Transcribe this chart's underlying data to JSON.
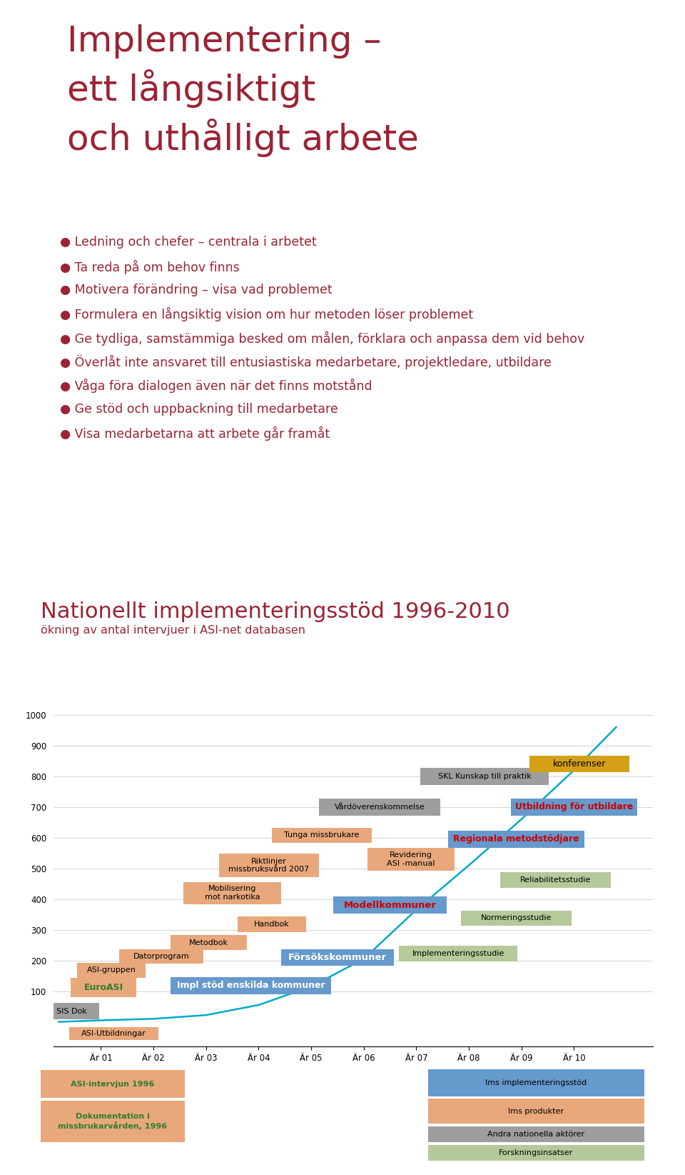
{
  "slide1_title": "Implementering –\nett långsiktigt\noch uthålligt arbete",
  "slide1_bullets": [
    "Ledning och chefer – centrala i arbetet",
    "Ta reda på om behov finns",
    "Motivera förändring – visa vad problemet",
    "Formulera en långsiktig vision om hur metoden löser problemet",
    "Ge tydliga, samstämmiga besked om målen, förklara och anpassa dem vid behov",
    "Överlåt inte ansvaret till entusiastiska medarbetare, projektledare, utbildare",
    "Våga föra dialogen även när det finns motstånd",
    "Ge stöd och uppbackning till medarbetare",
    "Visa medarbetarna att arbete går framåt"
  ],
  "slide2_title": "Nationellt implementeringsstöd 1996-2010",
  "slide2_subtitle": "ökning av antal intervjuer i ASI-net databasen",
  "title_color": "#9B2335",
  "bullet_color": "#9B2335",
  "bg_color": "#FFFFFF",
  "c_blue": "#6699CC",
  "c_orange": "#E8A87C",
  "c_gray": "#9E9E9E",
  "c_green": "#B5C99A",
  "c_gold": "#D4A017",
  "c_cyan": "#00AACC",
  "c_green_text": "#2E7D32",
  "x_labels": [
    "Är 01",
    "Är 02",
    "Är 03",
    "Är 04",
    "Är 05",
    "Är 06",
    "Är 07",
    "Är 08",
    "Är 09",
    "Är 10"
  ],
  "yticks": [
    100,
    200,
    300,
    400,
    500,
    600,
    700,
    800,
    900,
    1000
  ],
  "line_x": [
    -0.8,
    0,
    1,
    2,
    3,
    4,
    5,
    6,
    7,
    8,
    9,
    9.8
  ],
  "line_y": [
    0,
    5,
    10,
    22,
    55,
    115,
    205,
    365,
    510,
    660,
    820,
    960
  ]
}
